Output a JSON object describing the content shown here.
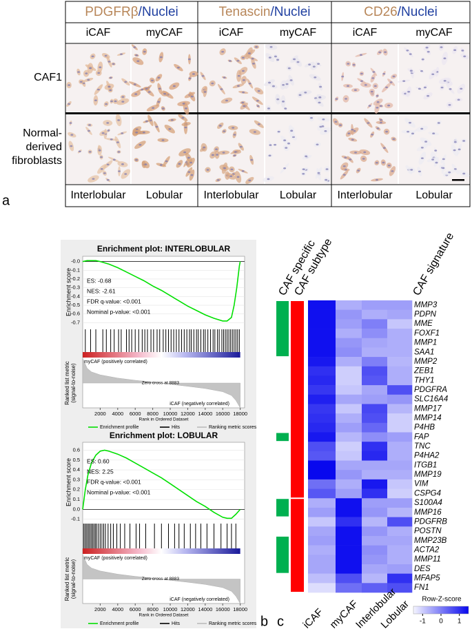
{
  "panel_a": {
    "label": "a",
    "stains": [
      {
        "marker": "PDGFRβ",
        "nuclei": "/Nuclei"
      },
      {
        "marker": "Tenascin",
        "nuclei": "/Nuclei"
      },
      {
        "marker": "CD26",
        "nuclei": "/Nuclei"
      }
    ],
    "columns": [
      "iCAF",
      "myCAF",
      "iCAF",
      "myCAF",
      "iCAF",
      "myCAF"
    ],
    "rows": [
      [
        "CAF1"
      ],
      [
        "Normal-",
        "derived",
        "fibroblasts"
      ]
    ],
    "footer": [
      "Interlobular",
      "Lobular",
      "Interlobular",
      "Lobular",
      "Interlobular",
      "Lobular"
    ]
  },
  "panel_labels": {
    "b": "b",
    "c": "c"
  },
  "chart_data": [
    {
      "type": "gsea",
      "title": "Enrichment plot: INTERLOBULAR",
      "ylabel": "Enrichment score",
      "stats": [
        "ES: -0.68",
        "NES: -2.61",
        "FDR q-value: <0.001",
        "Nominal p-value: <0.001"
      ],
      "x": [
        0,
        500,
        1000,
        1500,
        2000,
        3000,
        4000,
        5000,
        6000,
        7000,
        8000,
        9000,
        10000,
        11000,
        12000,
        13000,
        14000,
        15000,
        16000,
        16500,
        17000,
        17300,
        17600,
        17900,
        18000
      ],
      "values": [
        0,
        0.01,
        0.01,
        0.01,
        0,
        -0.03,
        -0.07,
        -0.12,
        -0.17,
        -0.22,
        -0.28,
        -0.33,
        -0.39,
        -0.45,
        -0.51,
        -0.56,
        -0.61,
        -0.65,
        -0.68,
        -0.68,
        -0.64,
        -0.5,
        -0.3,
        -0.05,
        0
      ],
      "color": "#00e000",
      "xlim": [
        0,
        18500
      ],
      "ylim": [
        -0.76,
        0.06
      ],
      "yticks": [
        {
          "value": 0,
          "label": "-0.0"
        },
        -0.1,
        -0.2,
        -0.3,
        -0.4,
        -0.5,
        -0.6,
        -0.7
      ],
      "xticks": [
        2000,
        4000,
        6000,
        8000,
        10000,
        12000,
        14000,
        16000,
        18000
      ],
      "xlabel": "Rank in Ordered Dataset",
      "hits": [
        300,
        900,
        1500,
        2300,
        2700,
        3200,
        3600,
        4100,
        4400,
        5000,
        5300,
        5600,
        6000,
        6400,
        6800,
        7100,
        7400,
        7800,
        8100,
        8500,
        8800,
        9200,
        9500,
        9800,
        10100,
        10400,
        10700,
        11000,
        11300,
        11600,
        11900,
        12200,
        12400,
        12700,
        13000,
        13200,
        13500,
        13800,
        14000,
        14300,
        14600,
        14900,
        15100,
        15400,
        15600,
        15900,
        16100,
        16300,
        16500,
        16700,
        16900,
        17100,
        17300,
        17500,
        17700,
        17900
      ],
      "metric": {
        "ylabel": [
          "Ranked list metric",
          "(signal-to-noise)"
        ],
        "x": [
          0,
          500,
          1000,
          2000,
          4000,
          6000,
          8000,
          8883,
          10000,
          12000,
          14000,
          16000,
          17000,
          17500,
          18000
        ],
        "values": [
          1.0,
          0.6,
          0.45,
          0.33,
          0.2,
          0.11,
          0.04,
          0,
          -0.05,
          -0.13,
          -0.22,
          -0.35,
          -0.5,
          -0.7,
          -1.0
        ],
        "ylim": [
          -1,
          1
        ],
        "pos_label": "myCAF (positively correlated)",
        "neg_label": "iCAF (negatively correlated)",
        "zero_label": "Zero cross at 8883"
      },
      "legend": [
        {
          "name": "Enrichment profile",
          "color": "#00e000"
        },
        {
          "name": "Hits",
          "color": "#000000"
        },
        {
          "name": "Ranking metric scores",
          "color": "#bbbbbb"
        }
      ]
    },
    {
      "type": "gsea",
      "title": "Enrichment plot: LOBULAR",
      "ylabel": "Enrichment score",
      "stats": [
        "ES: 0.60",
        "NES: 2.25",
        "FDR q-value: <0.001",
        "Nominal p-value: <0.001"
      ],
      "x": [
        0,
        300,
        600,
        1000,
        1500,
        2000,
        2500,
        3000,
        4000,
        5000,
        6000,
        7000,
        8000,
        9000,
        10000,
        11000,
        12000,
        13000,
        14000,
        15000,
        16000,
        16500,
        17000,
        17500,
        18000
      ],
      "values": [
        0,
        0.2,
        0.35,
        0.47,
        0.55,
        0.59,
        0.6,
        0.59,
        0.56,
        0.52,
        0.47,
        0.42,
        0.37,
        0.32,
        0.26,
        0.2,
        0.14,
        0.08,
        0.03,
        -0.03,
        -0.08,
        -0.09,
        -0.09,
        -0.05,
        0
      ],
      "color": "#00e000",
      "xlim": [
        0,
        18500
      ],
      "ylim": [
        -0.13,
        0.68
      ],
      "yticks": [
        0.6,
        0.5,
        0.4,
        0.3,
        0.2,
        0.1,
        {
          "value": 0,
          "label": "0.0"
        },
        -0.1
      ],
      "xticks": [
        2000,
        4000,
        6000,
        8000,
        10000,
        12000,
        14000,
        16000,
        18000
      ],
      "xlabel": "Rank in Ordered Dataset",
      "hits": [
        100,
        250,
        400,
        550,
        700,
        850,
        1000,
        1150,
        1300,
        1450,
        1600,
        1800,
        2000,
        2200,
        2400,
        2600,
        2900,
        3200,
        3500,
        3900,
        4300,
        4800,
        5400,
        6100,
        6500,
        7200,
        8200,
        9000,
        9800,
        10500,
        11000,
        11600,
        12300,
        12900,
        13500,
        14200,
        15000,
        15800,
        16500,
        17000,
        17500
      ],
      "metric": {
        "ylabel": [
          "Ranked list metric",
          "(signal-to-noise)"
        ],
        "x": [
          0,
          500,
          1000,
          2000,
          4000,
          6000,
          8000,
          8883,
          10000,
          12000,
          14000,
          16000,
          17000,
          17500,
          18000
        ],
        "values": [
          1.0,
          0.6,
          0.45,
          0.33,
          0.2,
          0.11,
          0.04,
          0,
          -0.05,
          -0.13,
          -0.22,
          -0.35,
          -0.5,
          -0.7,
          -1.0
        ],
        "ylim": [
          -1,
          1
        ],
        "pos_label": "myCAF (positively correlated)",
        "neg_label": "iCAF (negatively correlated)",
        "zero_label": "Zero cross at 8883"
      },
      "legend": [
        {
          "name": "Enrichment profile",
          "color": "#00e000"
        },
        {
          "name": "Hits",
          "color": "#000000"
        },
        {
          "name": "Ranking metric scores",
          "color": "#bbbbbb"
        }
      ]
    },
    {
      "type": "heatmap",
      "headers": {
        "specific": "CAF specific",
        "subtype": "CAF subtype",
        "signature": "CAF signature"
      },
      "columns": [
        "iCAF",
        "myCAF",
        "Interlobular",
        "Lobular"
      ],
      "rows": [
        "MMP3",
        "PDPN",
        "MME",
        "FOXF1",
        "MMP1",
        "SAA1",
        "MMP2",
        "ZEB1",
        "THY1",
        "PDGFRA",
        "SLC16A4",
        "MMP17",
        "MMP14",
        "P4HB",
        "FAP",
        "TNC",
        "P4HA2",
        "ITGB1",
        "MMP19",
        "VIM",
        "CSPG4",
        "S100A4",
        "MMP16",
        "PDGFRB",
        "POSTN",
        "MMP23B",
        "ACTA2",
        "MMP11",
        "DES",
        "MFAP5",
        "FN1"
      ],
      "values": [
        [
          1.4,
          -0.6,
          -0.4,
          -0.4
        ],
        [
          1.4,
          -0.3,
          -0.6,
          -0.5
        ],
        [
          1.4,
          -0.4,
          0.0,
          -0.9
        ],
        [
          1.4,
          -0.6,
          -0.2,
          -0.6
        ],
        [
          1.4,
          -0.3,
          -0.5,
          -0.6
        ],
        [
          1.4,
          -0.2,
          -0.6,
          -0.6
        ],
        [
          1.3,
          -0.6,
          0.0,
          -0.7
        ],
        [
          1.0,
          -1.0,
          0.6,
          -0.6
        ],
        [
          1.1,
          -1.0,
          0.5,
          -0.6
        ],
        [
          0.9,
          -0.9,
          -0.5,
          0.6
        ],
        [
          1.2,
          -0.5,
          -0.4,
          -0.3
        ],
        [
          0.9,
          -0.9,
          0.7,
          -0.7
        ],
        [
          1.0,
          -0.6,
          0.6,
          -1.0
        ],
        [
          1.1,
          -0.4,
          0.3,
          -1.0
        ],
        [
          1.3,
          -0.7,
          -0.2,
          -0.4
        ],
        [
          0.6,
          -1.0,
          1.0,
          -0.6
        ],
        [
          0.5,
          -0.9,
          1.1,
          -0.6
        ],
        [
          1.5,
          -0.5,
          -0.5,
          -0.5
        ],
        [
          1.5,
          -0.3,
          -0.6,
          -0.6
        ],
        [
          0.2,
          -0.6,
          1.3,
          -0.9
        ],
        [
          0.5,
          -0.4,
          1.0,
          -1.0
        ],
        [
          -0.6,
          1.4,
          -0.4,
          -0.4
        ],
        [
          -0.4,
          1.4,
          -0.3,
          -0.7
        ],
        [
          -0.9,
          1.0,
          -0.7,
          0.6
        ],
        [
          -0.5,
          1.4,
          -0.3,
          -0.6
        ],
        [
          -0.4,
          1.4,
          -0.5,
          -0.5
        ],
        [
          -0.6,
          1.4,
          -0.2,
          -0.6
        ],
        [
          -0.5,
          1.4,
          -0.3,
          -0.6
        ],
        [
          -0.5,
          1.4,
          -0.5,
          -0.4
        ],
        [
          -0.8,
          0.6,
          -0.7,
          1.0
        ],
        [
          -1.2,
          0.2,
          0.4,
          0.6
        ]
      ],
      "clim": [
        -1.5,
        1.5
      ],
      "colorbar_label": "Row-Z-score",
      "colorbar_ticks": [
        -1,
        0,
        1
      ],
      "caf_specific": [
        true,
        true,
        true,
        true,
        true,
        true,
        false,
        false,
        false,
        false,
        false,
        false,
        false,
        false,
        true,
        false,
        false,
        false,
        false,
        false,
        false,
        true,
        true,
        false,
        false,
        true,
        true,
        true,
        true,
        false,
        false
      ],
      "caf_subtype": [
        "iCAF",
        "iCAF",
        "iCAF",
        "iCAF",
        "iCAF",
        "iCAF",
        "iCAF",
        "iCAF",
        "iCAF",
        "iCAF",
        "iCAF",
        "iCAF",
        "iCAF",
        "iCAF",
        "iCAF",
        "iCAF",
        "iCAF",
        "iCAF",
        "iCAF",
        "iCAF",
        "iCAF",
        "myCAF",
        "myCAF",
        "myCAF",
        "myCAF",
        "myCAF",
        "myCAF",
        "myCAF",
        "myCAF",
        "myCAF",
        "myCAF"
      ],
      "specific_color": "#00b050",
      "subtype_color": "#ff0000"
    }
  ]
}
